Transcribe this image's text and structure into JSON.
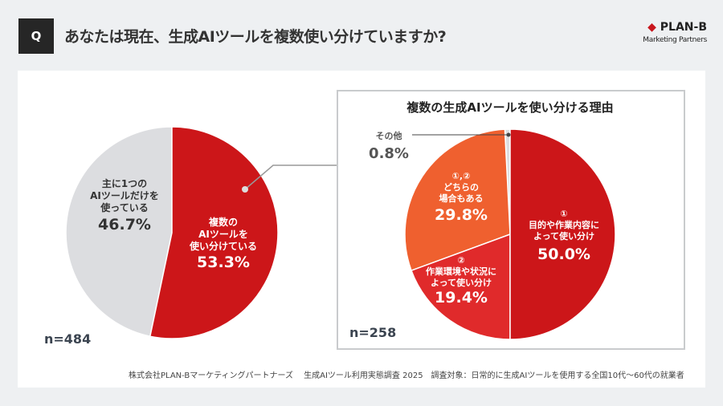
{
  "header": {
    "q_label": "Q",
    "title": "あなたは現在、生成AIツールを複数使い分けていますか?",
    "logo_name": "PLAN-B",
    "logo_sub": "Marketing Partners"
  },
  "colors": {
    "dark_red": "#cc1619",
    "red": "#e02a2b",
    "orange": "#ef602f",
    "gray": "#dcdde0"
  },
  "chart_data": [
    {
      "type": "pie",
      "n_label": "n=484",
      "slices": [
        {
          "label": "複数のAIツールを使い分けている",
          "value": 53.3,
          "value_label": "53.3%",
          "color": "#cc1619"
        },
        {
          "label": "主に1つのAIツールだけを使っている",
          "value": 46.7,
          "value_label": "46.7%",
          "color": "#dcdde0"
        }
      ]
    },
    {
      "type": "pie",
      "title": "複数の生成AIツールを使い分ける理由",
      "n_label": "n=258",
      "slices": [
        {
          "marker": "①",
          "label": "目的や作業内容によって使い分け",
          "value": 50.0,
          "value_label": "50.0%",
          "color": "#cc1619"
        },
        {
          "marker": "②",
          "label": "作業環境や状況によって使い分け",
          "value": 19.4,
          "value_label": "19.4%",
          "color": "#e02a2b"
        },
        {
          "marker": "①,②",
          "label": "どちらの場合もある",
          "value": 29.8,
          "value_label": "29.8%",
          "color": "#ef602f"
        },
        {
          "marker": "",
          "label": "その他",
          "value": 0.8,
          "value_label": "0.8%",
          "color": "#dcdde0"
        }
      ]
    }
  ],
  "labels": {
    "l_multi": [
      "複数の",
      "AIツールを",
      "使い分けている"
    ],
    "l_single": [
      "主に1つの",
      "AIツールだけを",
      "使っている"
    ],
    "r_1": [
      "目的や作業内容に",
      "よって使い分け"
    ],
    "r_2": [
      "作業環境や状況に",
      "よって使い分け"
    ],
    "r_12": [
      "どちらの",
      "場合もある"
    ]
  },
  "footer": "株式会社PLAN-Bマーケティングパートナーズ　 生成AIツール利用実態調査 2025　調査対象：日常的に生成AIツールを使用する全国10代〜60代の就業者"
}
